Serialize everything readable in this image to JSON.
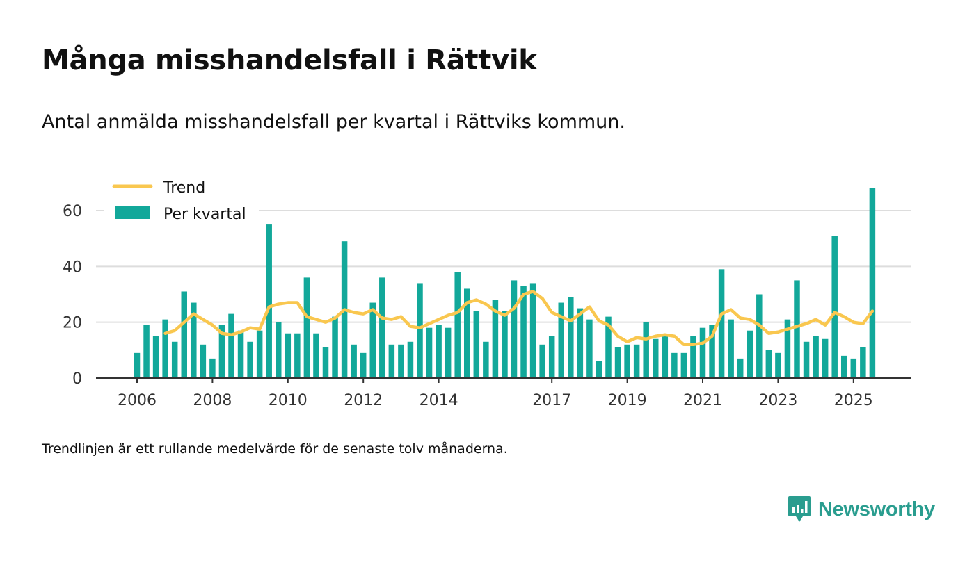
{
  "title": "Många misshandelsfall i Rättvik",
  "subtitle": "Antal anmälda misshandelsfall per kvartal i Rättviks kommun.",
  "footnote": "Trendlinjen är ett rullande medelvärde för de senaste tolv månaderna.",
  "brand": {
    "name": "Newsworthy",
    "icon": "newsworthy-logo-icon",
    "color": "#2a9d8f"
  },
  "colors": {
    "bar": "#12a89a",
    "trend": "#f9c74f",
    "grid": "#dddddd",
    "axis": "#333333"
  },
  "chart_data": {
    "type": "bar",
    "title": "Många misshandelsfall i Rättvik",
    "xlabel": "",
    "ylabel": "",
    "ylim": [
      0,
      72
    ],
    "y_ticks": [
      0,
      20,
      40,
      60
    ],
    "x_tick_labels": [
      "2006",
      "2008",
      "2010",
      "2012",
      "2014",
      "2017",
      "2019",
      "2021",
      "2023",
      "2025"
    ],
    "x_tick_quarter_index": [
      0,
      8,
      16,
      24,
      32,
      44,
      52,
      60,
      68,
      76
    ],
    "grid": true,
    "legend_position": "top-left",
    "legend": [
      "Trend",
      "Per kvartal"
    ],
    "series": [
      {
        "name": "Per kvartal",
        "kind": "bar",
        "start": "2006 Q1",
        "values": [
          9,
          19,
          15,
          21,
          13,
          31,
          27,
          12,
          7,
          19,
          23,
          17,
          13,
          17,
          55,
          20,
          16,
          16,
          36,
          16,
          11,
          22,
          49,
          12,
          9,
          27,
          36,
          12,
          12,
          13,
          34,
          18,
          19,
          18,
          38,
          32,
          24,
          13,
          28,
          24,
          35,
          33,
          34,
          12,
          15,
          27,
          29,
          25,
          21,
          6,
          22,
          11,
          12,
          12,
          20,
          14,
          15,
          9,
          9,
          15,
          18,
          19,
          39,
          21,
          7,
          17,
          30,
          10,
          9,
          21,
          35,
          13,
          15,
          14,
          51,
          8,
          7,
          11,
          68
        ]
      },
      {
        "name": "Trend",
        "kind": "line",
        "start": "2006 Q4",
        "values": [
          16,
          17,
          20,
          23,
          21,
          19,
          16,
          15.5,
          16.5,
          18,
          17.5,
          25.5,
          26.5,
          27,
          27,
          22,
          21,
          20,
          21.5,
          24.5,
          23.5,
          23,
          24.5,
          21.5,
          21,
          22,
          18.5,
          18,
          19.5,
          21,
          22.5,
          23.5,
          27,
          28,
          26.5,
          24,
          22.5,
          25,
          30,
          31,
          28.5,
          23.5,
          22,
          20.5,
          23,
          25.5,
          20.5,
          19,
          15,
          13,
          14.5,
          14,
          15,
          15.5,
          15,
          12,
          12,
          12.5,
          15,
          23,
          24.5,
          21.5,
          21,
          19,
          16,
          16.5,
          17.5,
          18.5,
          19.5,
          21,
          19,
          23.5,
          22,
          20,
          19.5,
          24
        ]
      }
    ]
  }
}
